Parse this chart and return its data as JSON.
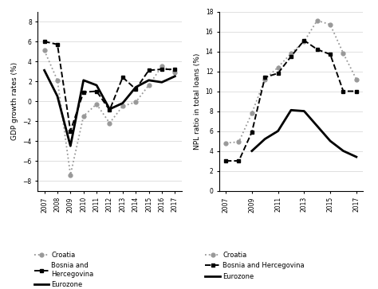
{
  "years_gdp": [
    2007,
    2008,
    2009,
    2010,
    2011,
    2012,
    2013,
    2014,
    2015,
    2016,
    2017
  ],
  "gdp_croatia": [
    5.1,
    2.1,
    -7.4,
    -1.5,
    -0.3,
    -2.2,
    -0.5,
    -0.1,
    1.6,
    3.5,
    2.9
  ],
  "gdp_bih": [
    6.0,
    5.7,
    -3.0,
    0.9,
    1.0,
    -0.9,
    2.4,
    1.2,
    3.1,
    3.2,
    3.2
  ],
  "gdp_eurozone": [
    3.1,
    0.5,
    -4.5,
    2.1,
    1.6,
    -0.8,
    -0.2,
    1.4,
    2.1,
    1.9,
    2.5
  ],
  "years_npl": [
    2007,
    2008,
    2009,
    2010,
    2011,
    2012,
    2013,
    2014,
    2015,
    2016,
    2017
  ],
  "npl_croatia": [
    4.8,
    4.9,
    7.8,
    11.2,
    12.4,
    13.8,
    15.0,
    17.1,
    16.7,
    13.8,
    11.2
  ],
  "npl_bih": [
    3.0,
    3.0,
    5.9,
    11.4,
    11.8,
    13.5,
    15.1,
    14.2,
    13.7,
    10.0,
    10.0
  ],
  "npl_eurozone": [
    null,
    null,
    4.0,
    5.2,
    6.0,
    8.1,
    8.0,
    6.5,
    5.0,
    4.0,
    3.4
  ],
  "gdp_ylim": [
    -9,
    9
  ],
  "gdp_yticks": [
    -8,
    -6,
    -4,
    -2,
    0,
    2,
    4,
    6,
    8
  ],
  "npl_ylim": [
    0,
    18
  ],
  "npl_yticks": [
    0,
    2,
    4,
    6,
    8,
    10,
    12,
    14,
    16,
    18
  ],
  "color_croatia": "#999999",
  "color_bih": "#000000",
  "color_eurozone": "#000000",
  "ylabel_gdp": "GDP growth rates (%)",
  "ylabel_npl": "NPL ratio in total loans (%)",
  "npl_xticks": [
    2007,
    2009,
    2011,
    2013,
    2015,
    2017
  ]
}
